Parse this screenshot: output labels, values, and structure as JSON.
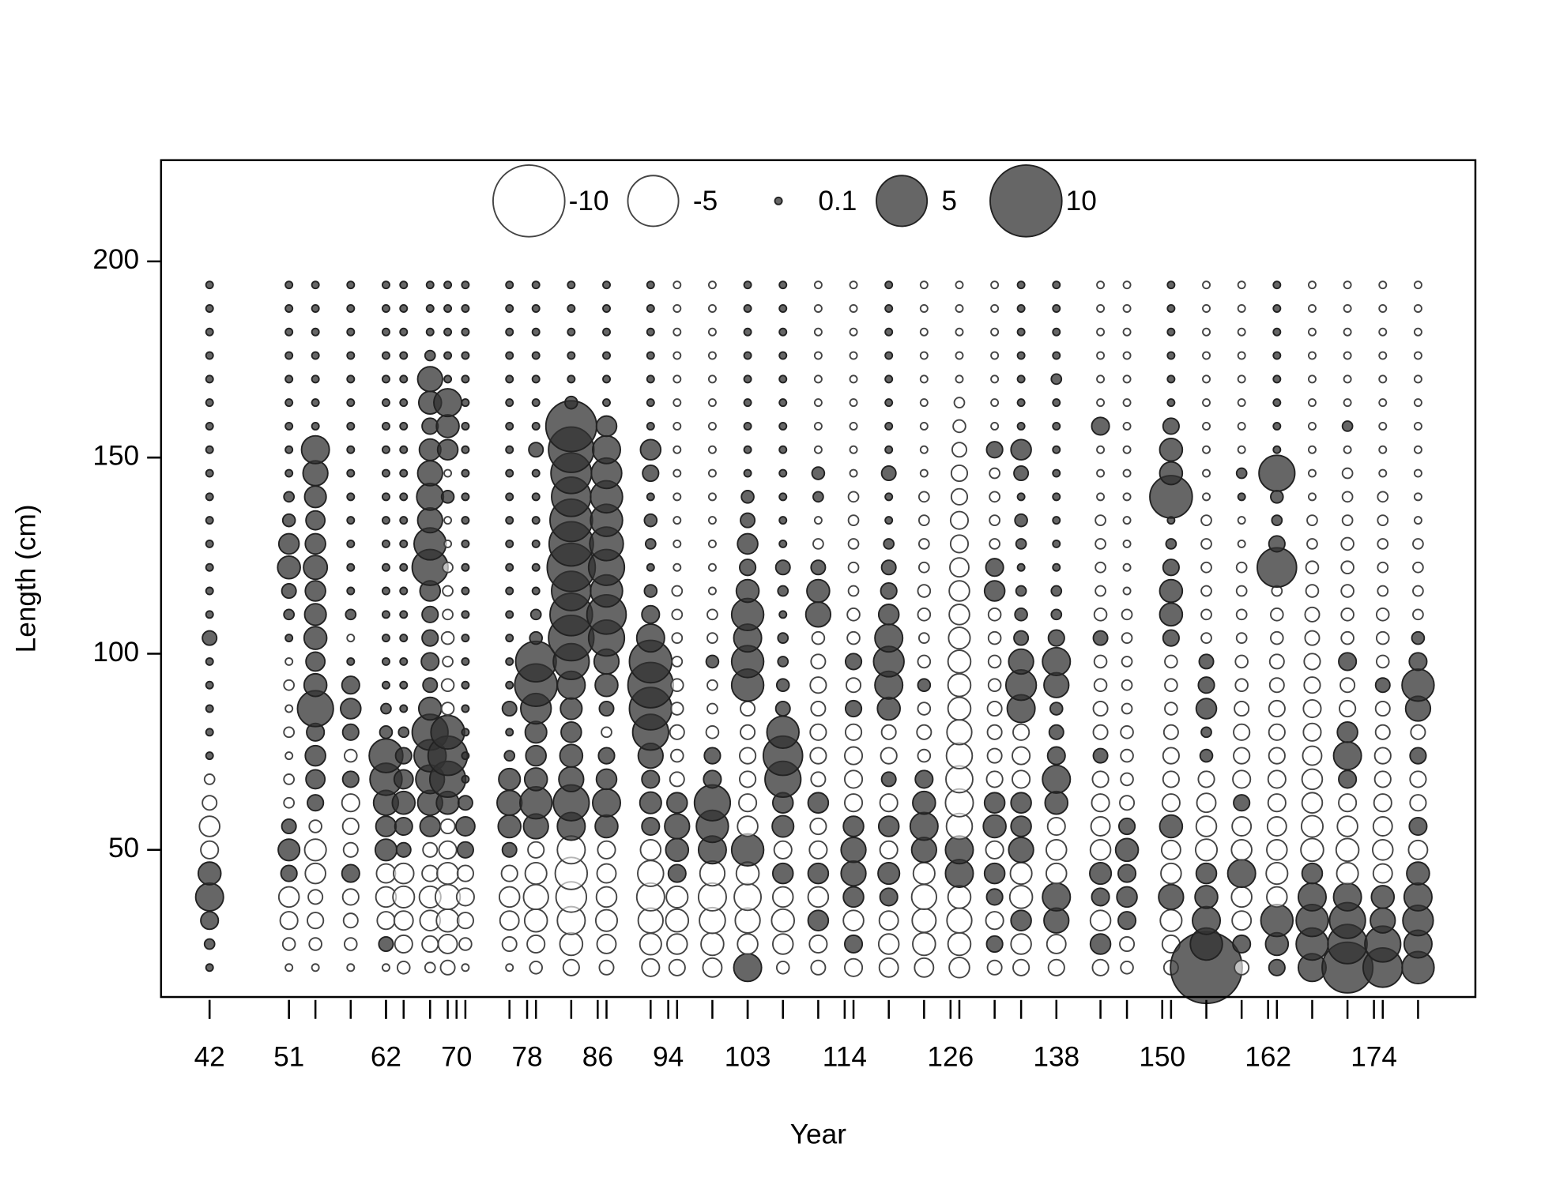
{
  "chart_data": {
    "type": "bubble",
    "xlabel": "Year",
    "ylabel": "Length (cm)",
    "xlim": [
      36.5,
      185.5
    ],
    "ylim": [
      12.5,
      225.8
    ],
    "xticks": [
      42,
      51,
      62,
      70,
      78,
      86,
      94,
      103,
      114,
      126,
      138,
      150,
      162,
      174
    ],
    "yticks": [
      50,
      100,
      150,
      200
    ],
    "positive_color": "#333333",
    "negative_color": "#ffffff",
    "legend": {
      "values": [
        -10,
        -5,
        0.1,
        5,
        10
      ]
    },
    "lengths": [
      20,
      26,
      32,
      38,
      44,
      50,
      56,
      62,
      68,
      74,
      80,
      86,
      92,
      98,
      104,
      110,
      116,
      122,
      128,
      134,
      140,
      146,
      152,
      158,
      164,
      170,
      176,
      182,
      188,
      194
    ],
    "columns": [
      {
        "x": 42,
        "values": [
          0.1,
          0.2,
          0.6,
          1.5,
          1.0,
          -0.6,
          -0.8,
          -0.4,
          -0.2,
          0.1,
          0.1,
          0.1,
          0.1,
          0.1,
          0.4,
          0.1,
          0.1,
          0.1,
          0.1,
          0.1,
          0.1,
          0.1,
          0.1,
          0.1,
          0.1,
          0.1,
          0.1,
          0.1,
          0.1,
          0.1
        ]
      },
      {
        "x": 51,
        "values": [
          -0.1,
          -0.3,
          -0.6,
          -0.8,
          0.5,
          0.9,
          0.4,
          -0.2,
          -0.2,
          -0.1,
          -0.2,
          -0.1,
          -0.2,
          -0.1,
          0.1,
          0.2,
          0.4,
          1.0,
          0.8,
          0.3,
          0.2,
          0.1,
          0.1,
          0.1,
          0.1,
          0.1,
          0.1,
          0.1,
          0.1,
          0.1
        ]
      },
      {
        "x": 54,
        "values": [
          -0.1,
          -0.3,
          -0.5,
          -0.4,
          -0.8,
          -0.9,
          -0.3,
          0.5,
          0.7,
          0.8,
          0.6,
          2.5,
          1.0,
          0.7,
          1.0,
          0.9,
          0.8,
          1.1,
          0.8,
          0.7,
          0.9,
          1.2,
          1.5,
          0.1,
          0.1,
          0.1,
          0.1,
          0.1,
          0.1,
          0.1
        ]
      },
      {
        "x": 58,
        "values": [
          -0.1,
          -0.3,
          -0.4,
          -0.5,
          0.6,
          -0.4,
          -0.5,
          -0.6,
          0.5,
          -0.3,
          0.5,
          0.8,
          0.6,
          0.1,
          -0.1,
          0.2,
          0.1,
          0.1,
          0.1,
          0.1,
          0.1,
          0.1,
          0.1,
          0.1,
          0.1,
          0.1,
          0.1,
          0.1,
          0.1,
          0.1
        ]
      },
      {
        "x": 62,
        "values": [
          -0.1,
          0.4,
          -0.6,
          -0.8,
          -0.7,
          0.9,
          0.8,
          1.2,
          2.0,
          2.2,
          0.3,
          0.2,
          0.1,
          0.1,
          0.1,
          0.1,
          0.1,
          0.1,
          0.1,
          0.1,
          0.1,
          0.1,
          0.1,
          0.1,
          0.1,
          0.1,
          0.1,
          0.1,
          0.1,
          0.1
        ]
      },
      {
        "x": 64,
        "values": [
          -0.3,
          -0.6,
          -0.7,
          -0.9,
          -0.8,
          0.4,
          0.6,
          1.0,
          0.7,
          0.5,
          0.2,
          0.1,
          0.1,
          0.1,
          0.1,
          0.1,
          0.1,
          0.1,
          0.1,
          0.1,
          0.1,
          0.1,
          0.1,
          0.1,
          0.1,
          0.1,
          0.1,
          0.1,
          0.1,
          0.1
        ]
      },
      {
        "x": 67,
        "values": [
          -0.2,
          -0.5,
          -0.8,
          -0.9,
          -0.5,
          -0.4,
          0.8,
          1.2,
          1.6,
          2.0,
          2.5,
          1.0,
          0.4,
          0.6,
          0.5,
          0.5,
          0.8,
          2.5,
          2.0,
          1.2,
          1.4,
          1.2,
          0.9,
          0.5,
          1.0,
          1.2,
          0.2,
          0.1,
          0.1,
          0.1
        ]
      },
      {
        "x": 69,
        "values": [
          -0.4,
          -0.7,
          -1.0,
          -1.2,
          -0.9,
          -0.6,
          -0.4,
          1.0,
          2.5,
          3.0,
          2.2,
          -0.3,
          -0.3,
          -0.2,
          -0.3,
          -0.2,
          -0.2,
          -0.2,
          -0.1,
          -0.1,
          0.3,
          -0.1,
          0.8,
          1.0,
          1.5,
          0.1,
          0.1,
          0.1,
          0.1,
          0.1
        ]
      },
      {
        "x": 71,
        "values": [
          -0.1,
          -0.3,
          -0.5,
          -0.6,
          -0.5,
          0.5,
          0.7,
          0.4,
          0.1,
          0.1,
          0.1,
          0.1,
          0.1,
          0.1,
          0.1,
          0.1,
          0.1,
          0.1,
          0.1,
          0.1,
          0.1,
          0.1,
          0.1,
          0.1,
          0.1,
          0.1,
          0.1,
          0.1,
          0.1,
          0.1
        ]
      },
      {
        "x": 76,
        "values": [
          -0.1,
          -0.4,
          -0.7,
          -0.8,
          -0.5,
          0.4,
          1.0,
          1.2,
          0.9,
          0.2,
          0.1,
          0.4,
          0.1,
          0.1,
          0.1,
          0.1,
          0.1,
          0.1,
          0.1,
          0.1,
          0.1,
          0.1,
          0.1,
          0.1,
          0.1,
          0.1,
          0.1,
          0.1,
          0.1,
          0.1
        ]
      },
      {
        "x": 79,
        "values": [
          -0.3,
          -0.6,
          -1.0,
          -1.2,
          -0.9,
          -0.5,
          1.2,
          2.0,
          1.0,
          0.8,
          0.9,
          1.8,
          3.5,
          3.2,
          0.3,
          0.2,
          0.1,
          0.1,
          0.1,
          0.1,
          0.1,
          0.1,
          0.4,
          0.1,
          0.1,
          0.1,
          0.1,
          0.1,
          0.1,
          0.1
        ]
      },
      {
        "x": 83,
        "values": [
          -0.5,
          -1.0,
          -1.5,
          -1.8,
          -2.0,
          -1.5,
          1.5,
          2.5,
          1.2,
          1.0,
          0.8,
          0.9,
          1.5,
          2.5,
          4.0,
          3.5,
          3.0,
          4.5,
          3.8,
          3.5,
          3.0,
          3.2,
          4.0,
          5.0,
          0.3,
          0.1,
          0.1,
          0.1,
          0.1,
          0.1
        ]
      },
      {
        "x": 87,
        "values": [
          -0.4,
          -0.7,
          -0.9,
          -0.8,
          -0.7,
          -0.6,
          1.0,
          1.5,
          0.8,
          0.5,
          -0.2,
          0.4,
          1.0,
          1.2,
          2.5,
          3.0,
          2.0,
          2.5,
          2.2,
          2.0,
          2.0,
          1.8,
          1.5,
          0.8,
          0.1,
          0.1,
          0.1,
          0.1,
          0.1,
          0.1
        ]
      },
      {
        "x": 92,
        "values": [
          -0.6,
          -0.9,
          -1.2,
          -1.5,
          -1.3,
          -0.8,
          0.6,
          0.9,
          0.6,
          1.2,
          2.5,
          3.5,
          4.0,
          3.5,
          1.5,
          0.6,
          0.3,
          0.1,
          0.2,
          0.3,
          0.1,
          0.5,
          0.8,
          0.1,
          0.1,
          0.1,
          0.1,
          0.1,
          0.1,
          0.1
        ]
      },
      {
        "x": 95,
        "values": [
          -0.5,
          -0.8,
          -1.0,
          -0.9,
          0.6,
          1.0,
          1.2,
          0.8,
          -0.4,
          -0.3,
          -0.4,
          -0.3,
          -0.3,
          -0.2,
          -0.2,
          -0.2,
          -0.2,
          -0.1,
          -0.1,
          -0.1,
          -0.1,
          -0.1,
          -0.1,
          -0.1,
          -0.1,
          -0.1,
          -0.1,
          -0.1,
          -0.1,
          -0.1
        ]
      },
      {
        "x": 99,
        "values": [
          -0.7,
          -1.0,
          -1.3,
          -1.5,
          -1.2,
          1.5,
          2.0,
          2.5,
          0.6,
          0.5,
          -0.3,
          -0.2,
          -0.2,
          0.3,
          -0.2,
          -0.2,
          -0.1,
          -0.1,
          -0.1,
          -0.1,
          -0.1,
          -0.1,
          -0.1,
          -0.1,
          -0.1,
          -0.1,
          -0.1,
          -0.1,
          -0.1,
          -0.1
        ]
      },
      {
        "x": 103,
        "values": [
          1.5,
          -0.8,
          -1.2,
          -1.4,
          -1.0,
          2.0,
          -0.8,
          -0.6,
          -0.5,
          -0.5,
          -0.4,
          -0.4,
          2.0,
          2.0,
          1.5,
          2.0,
          1.0,
          0.5,
          0.8,
          0.4,
          0.3,
          0.1,
          0.1,
          0.1,
          0.1,
          0.1,
          0.1,
          0.1,
          0.1,
          0.1
        ]
      },
      {
        "x": 107,
        "values": [
          -0.3,
          -0.8,
          -1.0,
          -0.8,
          0.8,
          -0.6,
          0.9,
          0.8,
          2.5,
          3.0,
          2.0,
          0.4,
          0.3,
          0.2,
          0.2,
          0.1,
          0.2,
          0.4,
          0.1,
          0.1,
          0.1,
          0.1,
          0.1,
          0.1,
          0.1,
          0.1,
          0.1,
          0.1,
          0.1,
          0.1
        ]
      },
      {
        "x": 111,
        "values": [
          -0.4,
          -0.6,
          0.8,
          -0.8,
          0.8,
          -0.6,
          -0.5,
          0.8,
          -0.4,
          -0.5,
          -0.5,
          -0.4,
          -0.5,
          -0.4,
          -0.3,
          1.2,
          1.0,
          0.4,
          -0.2,
          -0.1,
          0.2,
          0.3,
          -0.1,
          -0.1,
          -0.1,
          -0.1,
          -0.1,
          -0.1,
          -0.1,
          -0.1
        ]
      },
      {
        "x": 115,
        "values": [
          -0.6,
          0.6,
          -0.8,
          0.8,
          1.2,
          1.2,
          0.8,
          -0.6,
          -0.6,
          -0.6,
          -0.5,
          0.5,
          -0.4,
          0.5,
          -0.3,
          -0.3,
          -0.2,
          -0.2,
          -0.2,
          -0.2,
          -0.2,
          -0.1,
          -0.1,
          -0.1,
          -0.1,
          -0.1,
          -0.1,
          -0.1,
          -0.1,
          -0.1
        ]
      },
      {
        "x": 119,
        "values": [
          -0.7,
          -0.8,
          -0.7,
          0.6,
          0.9,
          -0.6,
          0.8,
          -0.6,
          0.4,
          -0.5,
          -0.4,
          1.0,
          1.5,
          1.8,
          1.5,
          0.8,
          0.5,
          0.4,
          0.2,
          0.1,
          0.1,
          0.4,
          0.1,
          0.1,
          0.1,
          0.1,
          0.1,
          0.1,
          0.1,
          0.1
        ]
      },
      {
        "x": 123,
        "values": [
          -0.7,
          -1.0,
          -1.1,
          -1.2,
          -0.9,
          1.2,
          1.5,
          1.0,
          0.6,
          -0.3,
          -0.4,
          -0.3,
          0.3,
          -0.3,
          -0.2,
          -0.3,
          -0.3,
          -0.2,
          -0.2,
          -0.2,
          -0.2,
          -0.1,
          -0.1,
          -0.1,
          -0.1,
          -0.1,
          -0.1,
          -0.1,
          -0.1,
          -0.1
        ]
      },
      {
        "x": 127,
        "values": [
          -0.8,
          -1.0,
          -1.2,
          -1.0,
          1.5,
          1.5,
          -1.3,
          -1.5,
          -1.4,
          -1.3,
          -1.2,
          -1.0,
          -1.0,
          -1.0,
          -0.9,
          -0.8,
          -0.8,
          -0.7,
          -0.6,
          -0.6,
          -0.5,
          -0.5,
          -0.4,
          -0.3,
          -0.2,
          -0.1,
          -0.1,
          -0.1,
          -0.1,
          -0.1
        ]
      },
      {
        "x": 131,
        "values": [
          -0.4,
          0.5,
          -0.6,
          0.5,
          0.8,
          -0.6,
          1.0,
          0.8,
          -0.5,
          -0.4,
          -0.4,
          -0.4,
          -0.3,
          -0.3,
          -0.3,
          -0.3,
          0.8,
          0.6,
          -0.2,
          -0.2,
          -0.2,
          -0.2,
          0.5,
          -0.1,
          -0.1,
          -0.1,
          -0.1,
          -0.1,
          -0.1,
          -0.1
        ]
      },
      {
        "x": 134,
        "values": [
          -0.5,
          -0.8,
          0.8,
          -1.0,
          -0.9,
          1.2,
          0.8,
          0.8,
          -0.6,
          -0.6,
          -0.5,
          1.5,
          1.8,
          1.2,
          0.4,
          0.3,
          0.2,
          0.1,
          0.2,
          0.3,
          0.1,
          0.4,
          0.8,
          0.1,
          0.1,
          0.1,
          0.1,
          0.1,
          0.1,
          0.1
        ]
      },
      {
        "x": 138,
        "values": [
          -0.5,
          -0.7,
          1.2,
          1.5,
          -0.8,
          -0.8,
          -0.6,
          1.0,
          1.5,
          0.6,
          0.4,
          0.3,
          1.2,
          1.5,
          0.5,
          0.2,
          0.2,
          0.1,
          0.1,
          0.1,
          0.1,
          0.1,
          0.1,
          0.1,
          0.1,
          0.2,
          0.1,
          0.1,
          0.1,
          0.1
        ]
      },
      {
        "x": 143,
        "values": [
          -0.5,
          0.8,
          -0.8,
          0.6,
          0.9,
          -0.8,
          -0.7,
          -0.6,
          -0.5,
          0.4,
          -0.4,
          -0.4,
          -0.3,
          -0.3,
          0.4,
          -0.3,
          -0.2,
          -0.2,
          -0.2,
          -0.2,
          -0.1,
          -0.1,
          -0.1,
          0.6,
          -0.1,
          -0.1,
          -0.1,
          -0.1,
          -0.1,
          -0.1
        ]
      },
      {
        "x": 146,
        "values": [
          -0.3,
          -0.4,
          0.6,
          0.8,
          0.6,
          1.0,
          0.5,
          -0.4,
          -0.3,
          -0.3,
          -0.3,
          -0.2,
          -0.2,
          -0.2,
          -0.2,
          -0.2,
          -0.1,
          -0.1,
          -0.1,
          -0.1,
          -0.1,
          -0.1,
          -0.1,
          -0.1,
          -0.1,
          -0.1,
          -0.1,
          -0.1,
          -0.1,
          -0.1
        ]
      },
      {
        "x": 151,
        "values": [
          -0.4,
          -0.6,
          -0.9,
          1.2,
          -0.8,
          -0.7,
          1.0,
          -0.6,
          -0.5,
          -0.5,
          -0.4,
          -0.3,
          -0.3,
          -0.3,
          0.5,
          1.0,
          1.0,
          0.5,
          0.2,
          0.1,
          3.5,
          1.0,
          1.0,
          0.5,
          0.1,
          0.1,
          0.1,
          0.1,
          0.1,
          0.1
        ]
      },
      {
        "x": 155,
        "values": [
          10,
          2.0,
          1.5,
          1.0,
          0.8,
          -0.9,
          -0.8,
          -0.7,
          -0.5,
          0.3,
          0.2,
          0.8,
          0.5,
          0.4,
          -0.2,
          -0.2,
          -0.2,
          -0.2,
          -0.2,
          -0.2,
          -0.1,
          -0.1,
          -0.1,
          -0.1,
          -0.1,
          -0.1,
          -0.1,
          -0.1,
          -0.1,
          -0.1
        ]
      },
      {
        "x": 159,
        "values": [
          -0.4,
          0.6,
          -0.7,
          -0.8,
          1.5,
          -0.8,
          -0.7,
          0.5,
          -0.6,
          -0.5,
          -0.5,
          -0.4,
          -0.3,
          -0.3,
          -0.2,
          -0.2,
          -0.2,
          -0.2,
          -0.1,
          -0.1,
          0.1,
          0.2,
          -0.1,
          -0.1,
          -0.1,
          -0.1,
          -0.1,
          -0.1,
          -0.1,
          -0.1
        ]
      },
      {
        "x": 163,
        "values": [
          0.5,
          1.0,
          2.0,
          -0.8,
          -0.9,
          -0.8,
          -0.7,
          -0.6,
          -0.6,
          -0.5,
          -0.5,
          -0.5,
          -0.4,
          -0.4,
          -0.3,
          -0.3,
          -0.2,
          3.0,
          0.5,
          0.2,
          0.3,
          2.5,
          0.1,
          0.1,
          0.1,
          0.1,
          0.1,
          0.1,
          0.1,
          0.1
        ]
      },
      {
        "x": 167,
        "values": [
          1.5,
          2.0,
          2.0,
          1.5,
          0.8,
          -1.0,
          -0.9,
          -0.8,
          -0.8,
          -0.7,
          -0.6,
          -0.6,
          -0.5,
          -0.5,
          -0.4,
          -0.4,
          -0.3,
          -0.3,
          -0.2,
          -0.2,
          -0.1,
          -0.1,
          -0.1,
          -0.1,
          -0.1,
          -0.1,
          -0.1,
          -0.1,
          -0.1,
          -0.1
        ]
      },
      {
        "x": 171,
        "values": [
          5.0,
          3.0,
          2.5,
          1.5,
          -0.9,
          -1.0,
          -0.8,
          -0.6,
          0.6,
          1.5,
          0.8,
          -0.5,
          -0.4,
          0.6,
          -0.3,
          -0.3,
          -0.3,
          -0.3,
          -0.3,
          -0.2,
          -0.2,
          -0.2,
          -0.1,
          0.2,
          -0.1,
          -0.1,
          -0.1,
          -0.1,
          -0.1,
          -0.1
        ]
      },
      {
        "x": 175,
        "values": [
          3.0,
          2.5,
          1.2,
          1.0,
          -0.7,
          -0.8,
          -0.7,
          -0.6,
          -0.5,
          -0.5,
          -0.4,
          -0.4,
          0.4,
          -0.3,
          -0.3,
          -0.3,
          -0.2,
          -0.2,
          -0.2,
          -0.2,
          -0.2,
          -0.1,
          -0.1,
          -0.1,
          -0.1,
          -0.1,
          -0.1,
          -0.1,
          -0.1,
          -0.1
        ]
      },
      {
        "x": 179,
        "values": [
          2.0,
          1.5,
          1.8,
          1.5,
          1.0,
          -0.7,
          0.6,
          -0.5,
          -0.5,
          0.5,
          -0.4,
          1.2,
          2.0,
          0.6,
          0.3,
          -0.2,
          -0.2,
          -0.2,
          -0.2,
          -0.1,
          -0.1,
          -0.1,
          -0.1,
          -0.1,
          -0.1,
          -0.1,
          -0.1,
          -0.1,
          -0.1,
          -0.1
        ]
      }
    ]
  }
}
